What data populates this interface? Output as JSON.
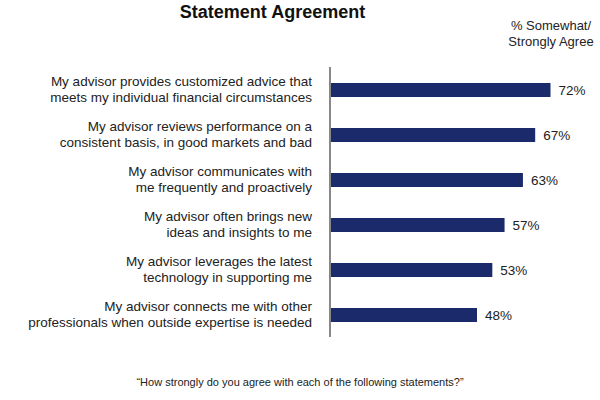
{
  "chart_data": {
    "type": "bar",
    "orientation": "horizontal",
    "title": "Statement Agreement",
    "xlabel": "% Somewhat/ Strongly Agree",
    "annotation": "“How strongly do you agree with each of the following statements?”",
    "categories": [
      "My advisor provides customized advice that meets my individual financial circumstances",
      "My advisor reviews performance on a consistent basis, in good markets and bad",
      "My advisor communicates with me frequently and proactively",
      "My advisor often brings new ideas and insights to me",
      "My advisor leverages the latest technology in supporting me",
      "My advisor connects me with other professionals when outside expertise is needed"
    ],
    "values": [
      72,
      67,
      63,
      57,
      53,
      48
    ],
    "value_labels": [
      "72%",
      "67%",
      "63%",
      "57%",
      "53%",
      "48%"
    ],
    "data_labels": true,
    "color": "#1b2a6b",
    "xlim": [
      0,
      80
    ],
    "tick_labels": false,
    "grid": false
  }
}
